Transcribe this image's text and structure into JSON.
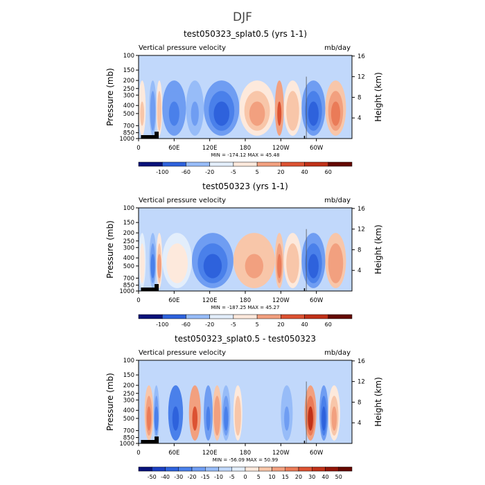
{
  "figure_title": "DJF",
  "colors": {
    "blue_scale": [
      "#08127a",
      "#1a3fc2",
      "#2e62dc",
      "#4a80ea",
      "#6f9df2",
      "#97bcf8",
      "#c1d8fb",
      "#e3eefb"
    ],
    "red_scale": [
      "#fde9dc",
      "#f8c6a9",
      "#f2a07f",
      "#ea7b58",
      "#dc5232",
      "#c03118",
      "#921407",
      "#650800"
    ]
  },
  "chart_data": [
    {
      "type": "heatmap",
      "title": "test050323_splat0.5 (yrs 1-1)",
      "left_label": "Vertical pressure velocity",
      "right_label": "mb/day",
      "ylabel": "Pressure (mb)",
      "y2label": "Height (km)",
      "y_ticks": [
        "100",
        "150",
        "200",
        "250",
        "300",
        "400",
        "500",
        "700",
        "850",
        "1000"
      ],
      "y2_ticks": [
        "16",
        "12",
        "8",
        "4"
      ],
      "x_ticks": [
        "0",
        "60E",
        "120E",
        "180",
        "120W",
        "60W"
      ],
      "minmax": "MIN = -174.12   MAX =  45.48",
      "colorbar_labels": [
        "-100",
        "-60",
        "-20",
        "-5",
        "5",
        "20",
        "40",
        "60"
      ],
      "features": [
        {
          "lon": [
            0,
            12
          ],
          "level": 5
        },
        {
          "lon": [
            18,
            30
          ],
          "level": -12
        },
        {
          "lon": [
            30,
            40
          ],
          "level": 8
        },
        {
          "lon": [
            40,
            80
          ],
          "level": -20
        },
        {
          "lon": [
            80,
            110
          ],
          "level": -10
        },
        {
          "lon": [
            110,
            170
          ],
          "level": -25
        },
        {
          "lon": [
            170,
            230
          ],
          "level": 10
        },
        {
          "lon": [
            230,
            245
          ],
          "level": 25
        },
        {
          "lon": [
            245,
            275
          ],
          "level": 8
        },
        {
          "lon": [
            275,
            315
          ],
          "level": -30
        },
        {
          "lon": [
            315,
            350
          ],
          "level": 20
        }
      ]
    },
    {
      "type": "heatmap",
      "title": "test050323 (yrs 1-1)",
      "left_label": "Vertical pressure velocity",
      "right_label": "mb/day",
      "ylabel": "Pressure (mb)",
      "y2label": "Height (km)",
      "y_ticks": [
        "100",
        "150",
        "200",
        "250",
        "300",
        "400",
        "500",
        "700",
        "850",
        "1000"
      ],
      "y2_ticks": [
        "16",
        "12",
        "8",
        "4"
      ],
      "x_ticks": [
        "0",
        "60E",
        "120E",
        "180",
        "120W",
        "60W"
      ],
      "minmax": "MIN = -187.25   MAX =  45.27",
      "colorbar_labels": [
        "-100",
        "-60",
        "-20",
        "-5",
        "5",
        "20",
        "40",
        "60"
      ],
      "features": [
        {
          "lon": [
            0,
            12
          ],
          "level": 3
        },
        {
          "lon": [
            18,
            30
          ],
          "level": -15
        },
        {
          "lon": [
            30,
            40
          ],
          "level": 10
        },
        {
          "lon": [
            40,
            90
          ],
          "level": 4
        },
        {
          "lon": [
            90,
            160
          ],
          "level": -30
        },
        {
          "lon": [
            160,
            230
          ],
          "level": 12
        },
        {
          "lon": [
            230,
            245
          ],
          "level": 20
        },
        {
          "lon": [
            245,
            275
          ],
          "level": 8
        },
        {
          "lon": [
            275,
            315
          ],
          "level": -30
        },
        {
          "lon": [
            315,
            350
          ],
          "level": 15
        }
      ]
    },
    {
      "type": "heatmap",
      "title": "test050323_splat0.5 - test050323",
      "left_label": "Vertical pressure velocity",
      "right_label": "mb/day",
      "ylabel": "Pressure (mb)",
      "y2label": "Height (km)",
      "y_ticks": [
        "100",
        "150",
        "200",
        "250",
        "300",
        "400",
        "500",
        "700",
        "850",
        "1000"
      ],
      "y2_ticks": [
        "16",
        "12",
        "8",
        "4"
      ],
      "x_ticks": [
        "0",
        "60E",
        "120E",
        "180",
        "120W",
        "60W"
      ],
      "minmax": "MIN = -56.09   MAX =  50.99",
      "colorbar_labels": [
        "-50",
        "-40",
        "-30",
        "-20",
        "-15",
        "-10",
        "-5",
        "0",
        "5",
        "10",
        "15",
        "20",
        "30",
        "40",
        "50"
      ],
      "features": [
        {
          "lon": [
            10,
            25
          ],
          "level": 20
        },
        {
          "lon": [
            25,
            35
          ],
          "level": -15
        },
        {
          "lon": [
            50,
            75
          ],
          "level": -35
        },
        {
          "lon": [
            85,
            105
          ],
          "level": 25
        },
        {
          "lon": [
            110,
            125
          ],
          "level": -20
        },
        {
          "lon": [
            125,
            140
          ],
          "level": 15
        },
        {
          "lon": [
            140,
            155
          ],
          "level": -15
        },
        {
          "lon": [
            160,
            175
          ],
          "level": 8
        },
        {
          "lon": [
            240,
            260
          ],
          "level": -10
        },
        {
          "lon": [
            280,
            300
          ],
          "level": 35
        },
        {
          "lon": [
            305,
            320
          ],
          "level": -25
        },
        {
          "lon": [
            320,
            340
          ],
          "level": 10
        }
      ]
    }
  ]
}
